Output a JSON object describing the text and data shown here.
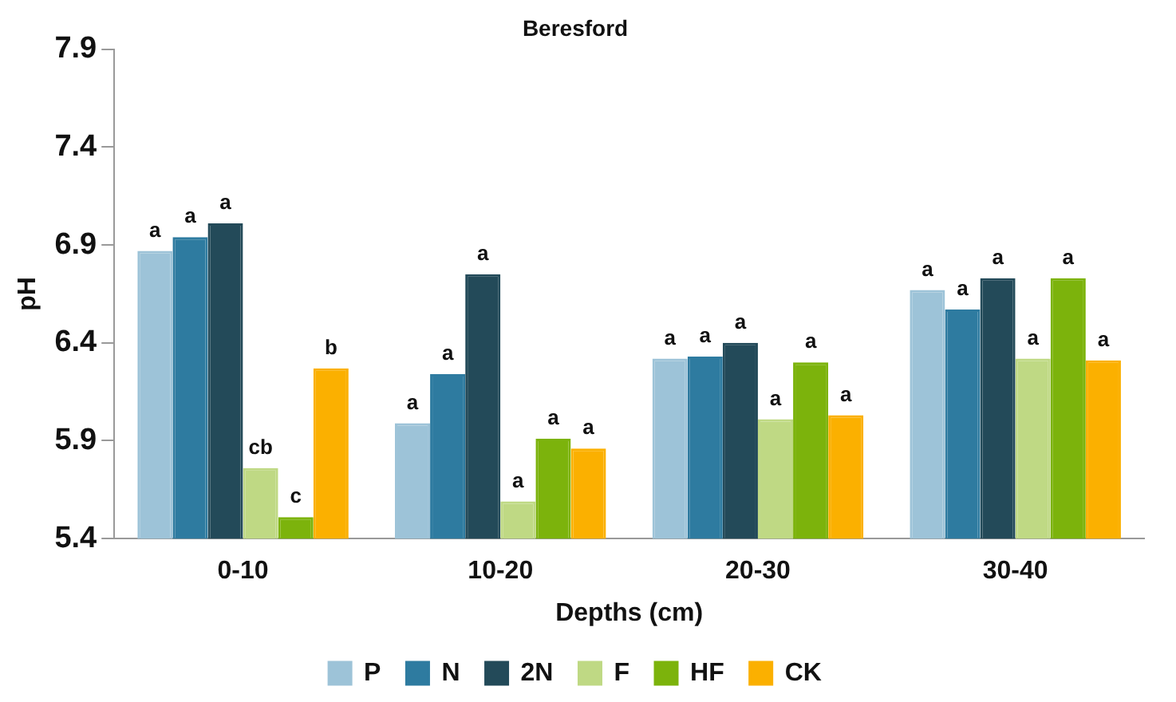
{
  "chart_data": {
    "type": "bar",
    "title": "Beresford",
    "xlabel": "Depths (cm)",
    "ylabel": "pH",
    "categories": [
      "0-10",
      "10-20",
      "20-30",
      "30-40"
    ],
    "series": [
      {
        "name": "P",
        "color": "#9dc3d8",
        "values": [
          6.87,
          5.99,
          6.32,
          6.67
        ],
        "value_labels": [
          "a",
          "a",
          "a",
          "a"
        ]
      },
      {
        "name": "N",
        "color": "#2e7ba0",
        "values": [
          6.94,
          6.24,
          6.33,
          6.57
        ],
        "value_labels": [
          "a",
          "a",
          "a",
          "a"
        ]
      },
      {
        "name": "2N",
        "color": "#234a59",
        "values": [
          7.01,
          6.75,
          6.4,
          6.73
        ],
        "value_labels": [
          "a",
          "a",
          "a",
          "a"
        ]
      },
      {
        "name": "F",
        "color": "#bfd984",
        "values": [
          5.76,
          5.59,
          6.01,
          6.32
        ],
        "value_labels": [
          "cb",
          "a",
          "a",
          "a"
        ]
      },
      {
        "name": "HF",
        "color": "#7cb30c",
        "values": [
          5.51,
          5.91,
          6.3,
          6.73
        ],
        "value_labels": [
          "c",
          "a",
          "a",
          "a"
        ]
      },
      {
        "name": "CK",
        "color": "#fbb000",
        "values": [
          6.27,
          5.86,
          6.03,
          6.31
        ],
        "value_labels": [
          "b",
          "a",
          "a",
          "a"
        ]
      }
    ],
    "ylim": [
      5.4,
      7.9
    ],
    "yticks": [
      5.4,
      5.9,
      6.4,
      6.9,
      7.4,
      7.9
    ],
    "grid": false,
    "legend": "bottom"
  }
}
